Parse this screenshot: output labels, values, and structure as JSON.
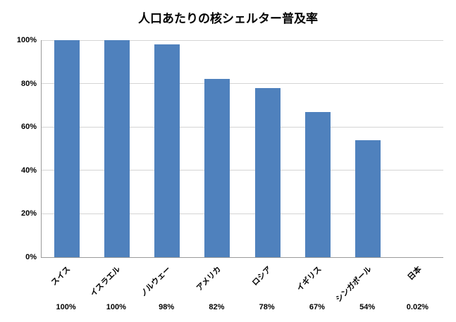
{
  "chart_data": {
    "type": "bar",
    "title": "人口あたりの核シェルター普及率",
    "categories": [
      "スイス",
      "イスラエル",
      "ノルウェー",
      "アメリカ",
      "ロシア",
      "イギリス",
      "シンガポール",
      "日本"
    ],
    "values": [
      100,
      100,
      98,
      82,
      78,
      67,
      54,
      0.02
    ],
    "value_labels": [
      "100%",
      "100%",
      "98%",
      "82%",
      "78%",
      "67%",
      "54%",
      "0.02%"
    ],
    "y_ticks": [
      0,
      20,
      40,
      60,
      80,
      100
    ],
    "y_tick_labels": [
      "0%",
      "20%",
      "40%",
      "60%",
      "80%",
      "100%"
    ],
    "ylim": [
      0,
      100
    ],
    "xlabel": "",
    "ylabel": "",
    "grid": true,
    "legend": false,
    "bar_color": "#4f81bd",
    "gridline_color": "#d4d4d4",
    "background_color": "#ffffff"
  }
}
